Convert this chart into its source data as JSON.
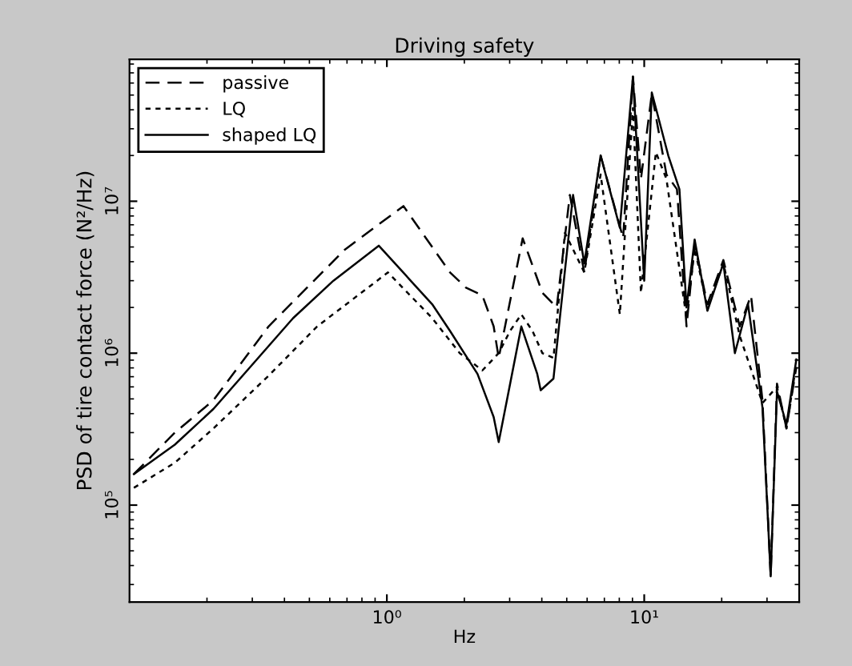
{
  "chart_data": {
    "type": "line",
    "title": "Driving safety",
    "xlabel": "Hz",
    "ylabel": "PSD of tire contact force (N²/Hz)",
    "log": "xy",
    "xlim": [
      0.1,
      40
    ],
    "xticks": [
      {
        "value": 1,
        "label": "10⁰"
      },
      {
        "value": 10,
        "label": "10¹"
      }
    ],
    "ylim": [
      23000,
      86000000
    ],
    "yticks": [
      {
        "value": 100000,
        "label": "10⁵"
      },
      {
        "value": 1000000,
        "label": "10⁶"
      },
      {
        "value": 10000000,
        "label": "10⁷"
      }
    ],
    "grid": false,
    "legend": "top left",
    "marker": "none",
    "series": [
      {
        "name": "passive",
        "color": "#000000",
        "line_style": "dashed",
        "x": [
          0.104,
          0.15,
          0.212,
          0.347,
          0.686,
          1.16,
          1.76,
          2.03,
          2.35,
          2.6,
          2.72,
          3.37,
          4.02,
          4.57,
          5.14,
          5.85,
          6.77,
          8.28,
          9.04,
          9.71,
          10.7,
          12.2,
          13.4,
          14.6,
          15.7,
          17.6,
          20.3,
          23.5,
          26.0,
          28.8,
          31.0,
          32.8,
          35.7,
          39.0
        ],
        "values": [
          160000,
          300000,
          490000,
          1500000,
          4800000,
          9300000,
          3400000,
          2700000,
          2400000,
          1500000,
          930000,
          5700000,
          2500000,
          2000000,
          11000000,
          3400000,
          20000000,
          5700000,
          66000000,
          14000000,
          51000000,
          15000000,
          12000000,
          1500000,
          5200000,
          2100000,
          4100000,
          1500000,
          2400000,
          490000,
          34000,
          630000,
          320000,
          810000
        ]
      },
      {
        "name": "LQ",
        "color": "#000000",
        "line_style": "dotted",
        "x": [
          0.104,
          0.15,
          0.212,
          0.347,
          0.536,
          1.01,
          1.5,
          1.92,
          2.35,
          2.72,
          3.01,
          3.33,
          3.68,
          4.02,
          4.44,
          4.92,
          5.85,
          6.77,
          8.04,
          9.04,
          9.71,
          11.1,
          12.2,
          14.6,
          15.7,
          17.6,
          20.3,
          23.5,
          28.8,
          32.8,
          35.7,
          39.0
        ],
        "values": [
          130000,
          190000,
          320000,
          710000,
          1500000,
          3400000,
          1700000,
          1000000,
          770000,
          1000000,
          1400000,
          1800000,
          1400000,
          1000000,
          930000,
          6200000,
          3400000,
          15000000,
          1800000,
          41000000,
          2500000,
          21000000,
          14000000,
          1700000,
          4900000,
          2000000,
          3900000,
          1300000,
          470000,
          600000,
          320000,
          860000
        ]
      },
      {
        "name": "shaped LQ",
        "color": "#000000",
        "line_style": "solid",
        "x": [
          0.104,
          0.15,
          0.212,
          0.432,
          0.62,
          0.93,
          1.5,
          1.76,
          2.25,
          2.6,
          2.72,
          2.92,
          3.33,
          3.84,
          3.96,
          4.44,
          4.7,
          5.29,
          5.85,
          6.77,
          8.04,
          9.04,
          10.0,
          10.7,
          12.4,
          13.7,
          14.6,
          15.7,
          17.6,
          20.3,
          22.5,
          25.3,
          28.8,
          31.0,
          32.8,
          35.7,
          39.0
        ],
        "values": [
          160000,
          250000,
          430000,
          1700000,
          3000000,
          5100000,
          2100000,
          1400000,
          730000,
          380000,
          260000,
          480000,
          1500000,
          730000,
          570000,
          680000,
          1700000,
          11000000,
          3900000,
          20000000,
          6700000,
          66000000,
          3000000,
          52000000,
          20000000,
          12000000,
          2000000,
          5600000,
          1900000,
          3900000,
          1000000,
          2100000,
          440000,
          34000,
          560000,
          340000,
          910000
        ]
      }
    ]
  }
}
